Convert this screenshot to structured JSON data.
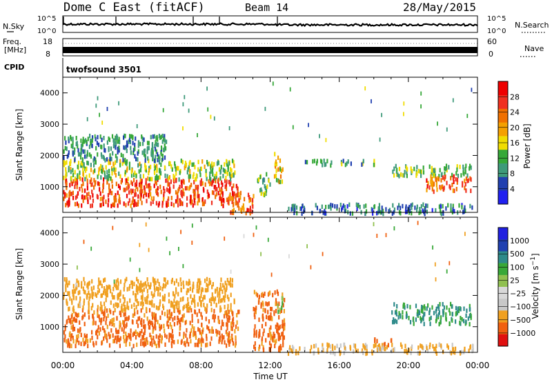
{
  "header": {
    "station": "Dome C East (fitACF)",
    "beam": "Beam 14",
    "date": "28/May/2015"
  },
  "panels": {
    "nsky": {
      "label": "N.Sky",
      "ticks": [
        "10^5",
        "10^0"
      ]
    },
    "nsearch": {
      "label": "N.Search",
      "ticks": [
        "10^5",
        "10^0"
      ]
    },
    "freq": {
      "label": "Freq.",
      "unit": "[MHz]",
      "ticks": [
        "18",
        "8"
      ]
    },
    "nave": {
      "label": "Nave",
      "ticks": [
        "60",
        "0"
      ]
    },
    "cpid": {
      "label": "CPID",
      "value": "twofsound 3501"
    }
  },
  "colors": {
    "power_scale": [
      "#2020f0",
      "#2040b0",
      "#3e9a7a",
      "#36a838",
      "#f0dc00",
      "#f4a000",
      "#f07000",
      "#f03020",
      "#ee0000"
    ],
    "velocity_scale": [
      "#e01010",
      "#f06010",
      "#f0a020",
      "#c8c8c8",
      "#d8d8d8",
      "#90c050",
      "#38a838",
      "#2e8a8a",
      "#2040b0",
      "#2020e0"
    ]
  },
  "chart_data": [
    {
      "type": "heatmap",
      "name": "power",
      "xlabel": "",
      "ylabel": "Slant Range [km]",
      "xlim": [
        0,
        24
      ],
      "ylim": [
        180,
        4500
      ],
      "yticks": [
        "1000",
        "2000",
        "3000",
        "4000"
      ],
      "colorbar": {
        "label": "Power [dB]",
        "ticks": [
          "4",
          "8",
          "12",
          "16",
          "20",
          "24",
          "28"
        ],
        "range": [
          0,
          32
        ]
      },
      "regions": [
        {
          "x": [
            0.0,
            10.2
          ],
          "y": [
            450,
            1300
          ],
          "value": 26
        },
        {
          "x": [
            0.0,
            10.0
          ],
          "y": [
            1300,
            1900
          ],
          "value": 14
        },
        {
          "x": [
            0.0,
            6.0
          ],
          "y": [
            1900,
            2700
          ],
          "value": 9
        },
        {
          "x": [
            9.6,
            11.0
          ],
          "y": [
            200,
            900
          ],
          "value": 24
        },
        {
          "x": [
            11.2,
            12.0
          ],
          "y": [
            800,
            1500
          ],
          "value": 12
        },
        {
          "x": [
            12.2,
            12.7
          ],
          "y": [
            1200,
            2200
          ],
          "value": 18
        },
        {
          "x": [
            14.0,
            18.0
          ],
          "y": [
            1750,
            1900
          ],
          "value": 10
        },
        {
          "x": [
            19.0,
            23.6
          ],
          "y": [
            1400,
            1750
          ],
          "value": 12
        },
        {
          "x": [
            21.0,
            23.6
          ],
          "y": [
            900,
            1400
          ],
          "value": 24
        },
        {
          "x": [
            13.0,
            23.8
          ],
          "y": [
            200,
            500
          ],
          "value": 8
        }
      ]
    },
    {
      "type": "heatmap",
      "name": "velocity",
      "xlabel": "Time UT",
      "ylabel": "Slant Range [km]",
      "xlim": [
        0,
        24
      ],
      "ylim": [
        180,
        4500
      ],
      "xticks": [
        "00:00",
        "04:00",
        "08:00",
        "12:00",
        "16:00",
        "20:00",
        "00:00"
      ],
      "yticks": [
        "1000",
        "2000",
        "3000",
        "4000"
      ],
      "colorbar": {
        "label": "Velocity [m s^-1]",
        "ticks": [
          "1000",
          "500",
          "100",
          "25",
          "−25",
          "−100",
          "−500",
          "−1000"
        ]
      },
      "regions": [
        {
          "x": [
            0.0,
            10.2
          ],
          "y": [
            450,
            1600
          ],
          "value": -150
        },
        {
          "x": [
            0.0,
            10.0
          ],
          "y": [
            1600,
            2600
          ],
          "value": -60
        },
        {
          "x": [
            11.0,
            12.8
          ],
          "y": [
            300,
            2200
          ],
          "value": -150
        },
        {
          "x": [
            12.4,
            12.7
          ],
          "y": [
            1500,
            2100
          ],
          "value": 100
        },
        {
          "x": [
            19.0,
            23.6
          ],
          "y": [
            1150,
            1800
          ],
          "value": 300
        },
        {
          "x": [
            18.0,
            19.0
          ],
          "y": [
            400,
            700
          ],
          "value": -150
        },
        {
          "x": [
            13.0,
            23.8
          ],
          "y": [
            200,
            500
          ],
          "value": -30
        }
      ]
    }
  ]
}
